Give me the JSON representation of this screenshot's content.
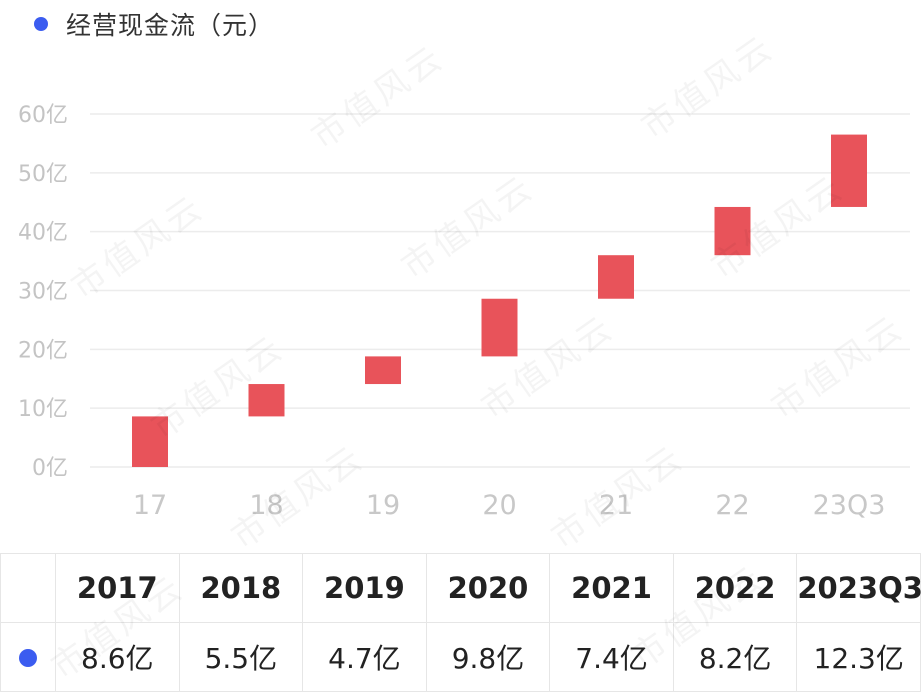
{
  "legend": {
    "label": "经营现金流（元）",
    "color": "#3b5cf0"
  },
  "watermark_text": "市值风云",
  "chart_data": {
    "type": "bar",
    "subtype": "waterfall",
    "bar_color": "#e8535a",
    "categories": [
      "17",
      "18",
      "19",
      "20",
      "21",
      "22",
      "23Q3"
    ],
    "series": [
      {
        "name": "经营现金流（元）",
        "values": [
          8.6,
          5.5,
          4.7,
          9.8,
          7.4,
          8.2,
          12.3
        ],
        "starts": [
          0,
          8.6,
          14.1,
          18.8,
          28.6,
          36.0,
          44.2
        ],
        "unit": "亿"
      }
    ],
    "y_ticks": [
      "0亿",
      "10亿",
      "20亿",
      "30亿",
      "40亿",
      "50亿",
      "60亿"
    ],
    "ylim": [
      0,
      60
    ],
    "grid": true
  },
  "table": {
    "headers": [
      "2017",
      "2018",
      "2019",
      "2020",
      "2021",
      "2022",
      "2023Q3"
    ],
    "values": [
      "8.6亿",
      "5.5亿",
      "4.7亿",
      "9.8亿",
      "7.4亿",
      "8.2亿",
      "12.3亿"
    ]
  }
}
